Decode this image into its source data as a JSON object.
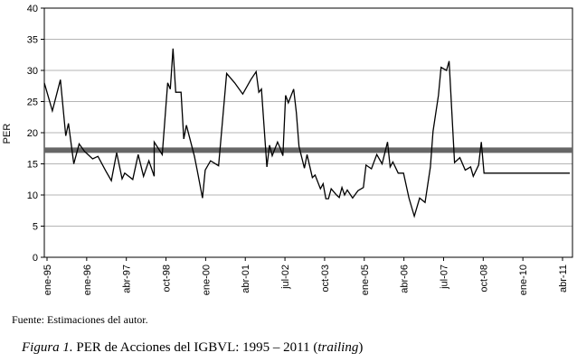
{
  "source_note": "Fuente: Estimaciones del autor.",
  "caption": {
    "figure_label": "Figura 1.",
    "text": " PER de Acciones del IGBVL: 1995 – 2011 (",
    "emphasis": "trailing",
    "close": ")"
  },
  "chart_data": {
    "type": "line",
    "ylabel": "PER",
    "xlabel": "",
    "ylim": [
      0,
      40
    ],
    "yticks": [
      0,
      5,
      10,
      15,
      20,
      25,
      30,
      35,
      40
    ],
    "x_tick_labels": [
      "ene-95",
      "ene-96",
      "abr-97",
      "oct-98",
      "ene-00",
      "abr-01",
      "jul-02",
      "oct-03",
      "ene-05",
      "abr-06",
      "jul-07",
      "oct-08",
      "ene-10",
      "abr-11"
    ],
    "x_range": [
      "1995-01",
      "2011-06"
    ],
    "grid": "horizontal",
    "line_color": "#000000",
    "reference_line": {
      "value": 17.2,
      "color": "#666666"
    },
    "series": [
      {
        "x": [
          "1995-01",
          "1995-04",
          "1995-07",
          "1995-09",
          "1995-10",
          "1995-12",
          "1996-02",
          "1996-04",
          "1996-07",
          "1996-09",
          "1996-12",
          "1997-02",
          "1997-04",
          "1997-06",
          "1997-07",
          "1997-10",
          "1997-12",
          "1998-02",
          "1998-04",
          "1998-06",
          "1998-06",
          "1998-09",
          "1998-11",
          "1998-12",
          "1999-01",
          "1999-02",
          "1999-04",
          "1999-05",
          "1999-06",
          "1999-09",
          "1999-10",
          "1999-12",
          "2000-01",
          "2000-03",
          "2000-06",
          "2000-09",
          "2000-12",
          "2001-03",
          "2001-06",
          "2001-08",
          "2001-09",
          "2001-10",
          "2001-12",
          "2002-01",
          "2002-02",
          "2002-04",
          "2002-05",
          "2002-06",
          "2002-07",
          "2002-08",
          "2002-10",
          "2002-11",
          "2002-12",
          "2003-02",
          "2003-03",
          "2003-05",
          "2003-06",
          "2003-08",
          "2003-09",
          "2003-10",
          "2003-11",
          "2003-12",
          "2004-02",
          "2004-03",
          "2004-04",
          "2004-05",
          "2004-06",
          "2004-08",
          "2004-10",
          "2004-12",
          "2005-01",
          "2005-03",
          "2005-05",
          "2005-07",
          "2005-09",
          "2005-10",
          "2005-11",
          "2006-01",
          "2006-03",
          "2006-05",
          "2006-07",
          "2006-09",
          "2006-11",
          "2007-01",
          "2007-02",
          "2007-04",
          "2007-05",
          "2007-07",
          "2007-08",
          "2007-10",
          "2007-12",
          "2008-02",
          "2008-04",
          "2008-05",
          "2008-07",
          "2008-08",
          "2008-09",
          "2008-11",
          "2008-12",
          "2009-02",
          "2009-04",
          "2009-06",
          "2009-07",
          "2009-08",
          "2009-09",
          "2009-10",
          "2009-11",
          "2010-01",
          "2010-02",
          "2010-04",
          "2010-05",
          "2010-07",
          "2010-10",
          "2010-12",
          "2011-03",
          "2011-05"
        ],
        "y": [
          28,
          23.5,
          28.5,
          19.5,
          21.5,
          15,
          18.2,
          17,
          15.8,
          16.2,
          13.8,
          12.3,
          16.8,
          12.6,
          13.5,
          12.5,
          16.5,
          13,
          15.5,
          13,
          18.5,
          16.5,
          28,
          27,
          33.5,
          26.5,
          26.5,
          19,
          21.2,
          16.2,
          14,
          9.5,
          14,
          15.5,
          14.7,
          29.5,
          28,
          26.2,
          28.5,
          29.8,
          26.5,
          27,
          14.5,
          18,
          16.3,
          18.5,
          17.5,
          16.3,
          26,
          24.8,
          27,
          23.2,
          17.8,
          14.3,
          16.5,
          12.8,
          13.2,
          11,
          11.8,
          9.4,
          9.4,
          11,
          10,
          9.6,
          11.2,
          10,
          10.8,
          9.5,
          10.7,
          11.2,
          14.8,
          14.2,
          16.5,
          15,
          18.5,
          14.5,
          15.3,
          13.5,
          13.5,
          9.5,
          6.6,
          9.5,
          8.8,
          14.5,
          20.2,
          26,
          30.5,
          30,
          31.5,
          15.2,
          16,
          14,
          14.5,
          13,
          14.8,
          18.5,
          13.5,
          13.5,
          13.5,
          13.5,
          13.5,
          13.5,
          13.5,
          13.5,
          13.5,
          13.5,
          13.5,
          13.5,
          13.5,
          13.5,
          13.5,
          13.5,
          13.5,
          13.5,
          13.5,
          13.5
        ]
      }
    ]
  }
}
